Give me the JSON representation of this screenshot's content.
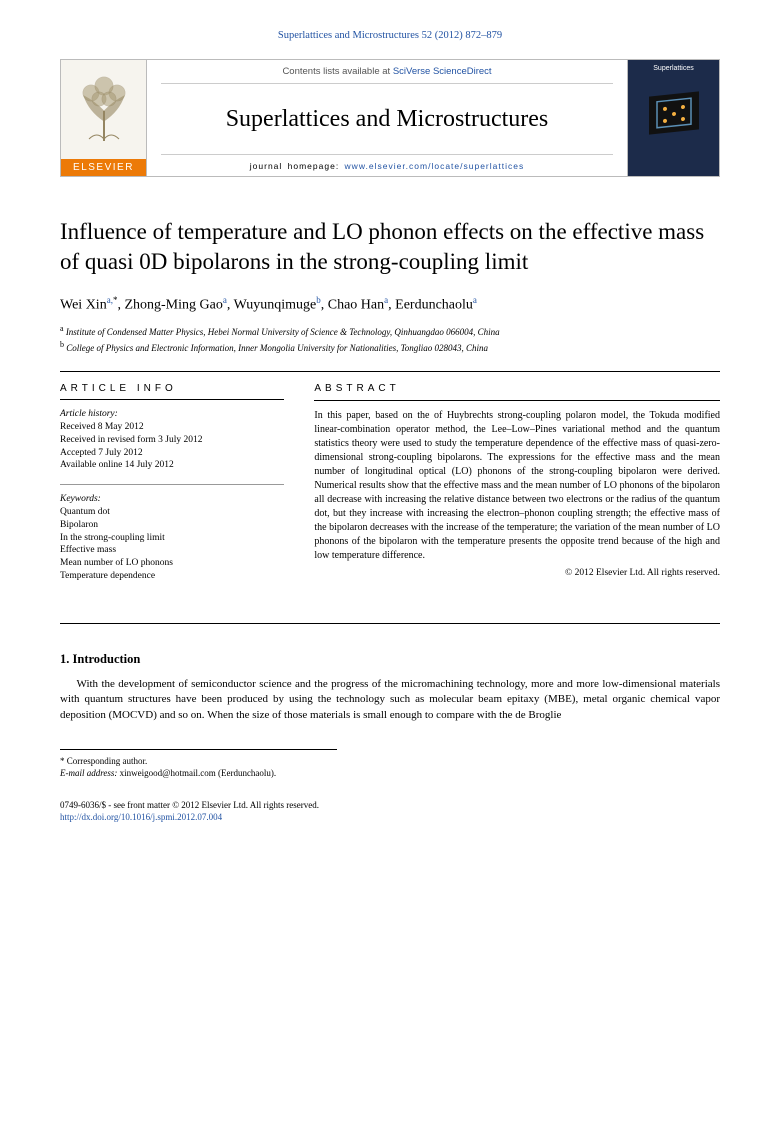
{
  "header": {
    "citation": "Superlattices and Microstructures 52 (2012) 872–879"
  },
  "masthead": {
    "contents_prefix": "Contents lists available at ",
    "contents_link": "SciVerse ScienceDirect",
    "journal_name": "Superlattices and Microstructures",
    "homepage_prefix": "journal homepage: ",
    "homepage_url": "www.elsevier.com/locate/superlattices",
    "publisher_label": "ELSEVIER",
    "cover_label": "Superlattices",
    "colors": {
      "elsevier_orange": "#ec7a08",
      "cover_bg": "#1c2b4a",
      "link_blue": "#2253a3",
      "border": "#bbbbbb"
    }
  },
  "article": {
    "title": "Influence of temperature and LO phonon effects on the effective mass of quasi 0D bipolarons in the strong-coupling limit",
    "authors_html": "Wei Xin<sup>a,</sup><sup class='corr'>*</sup>, Zhong-Ming Gao<sup>a</sup>, Wuyunqimuge<sup>b</sup>, Chao Han<sup>a</sup>, Eerdunchaolu<sup>a</sup>",
    "affiliations": [
      {
        "marker": "a",
        "text": "Institute of Condensed Matter Physics, Hebei Normal University of Science & Technology, Qinhuangdao 066004, China"
      },
      {
        "marker": "b",
        "text": "College of Physics and Electronic Information, Inner Mongolia University for Nationalities, Tongliao 028043, China"
      }
    ]
  },
  "info": {
    "heading": "ARTICLE INFO",
    "history_label": "Article history:",
    "history": [
      "Received 8 May 2012",
      "Received in revised form 3 July 2012",
      "Accepted 7 July 2012",
      "Available online 14 July 2012"
    ],
    "keywords_label": "Keywords:",
    "keywords": [
      "Quantum dot",
      "Bipolaron",
      "In the strong-coupling limit",
      "Effective mass",
      "Mean number of LO phonons",
      "Temperature dependence"
    ]
  },
  "abstract": {
    "heading": "ABSTRACT",
    "text": "In this paper, based on the of Huybrechts strong-coupling polaron model, the Tokuda modified linear-combination operator method, the Lee–Low–Pines variational method and the quantum statistics theory were used to study the temperature dependence of the effective mass of quasi-zero-dimensional strong-coupling bipolarons. The expressions for the effective mass and the mean number of longitudinal optical (LO) phonons of the strong-coupling bipolaron were derived. Numerical results show that the effective mass and the mean number of LO phonons of the bipolaron all decrease with increasing the relative distance between two electrons or the radius of the quantum dot, but they increase with increasing the electron–phonon coupling strength; the effective mass of the bipolaron decreases with the increase of the temperature; the variation of the mean number of LO phonons of the bipolaron with the temperature presents the opposite trend because of the high and low temperature difference.",
    "copyright": "© 2012 Elsevier Ltd. All rights reserved."
  },
  "section1": {
    "heading": "1. Introduction",
    "body": "With the development of semiconductor science and the progress of the micromachining technology, more and more low-dimensional materials with quantum structures have been produced by using the technology such as molecular beam epitaxy (MBE), metal organic chemical vapor deposition (MOCVD) and so on. When the size of those materials is small enough to compare with the de Broglie"
  },
  "footnotes": {
    "corr_label": "* Corresponding author.",
    "email_label": "E-mail address:",
    "email": "xinweigood@hotmail.com",
    "email_of": "(Eerdunchaolu)."
  },
  "copyright_block": {
    "issn_line": "0749-6036/$ - see front matter © 2012 Elsevier Ltd. All rights reserved.",
    "doi": "http://dx.doi.org/10.1016/j.spmi.2012.07.004"
  }
}
